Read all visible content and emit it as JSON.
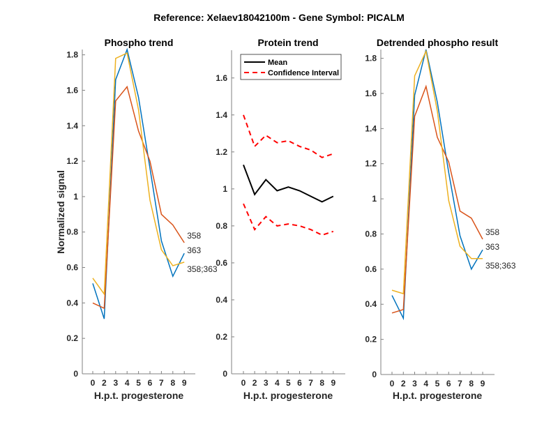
{
  "figure": {
    "title": "Reference:  Xelaev18042100m - Gene Symbol:  PICALM"
  },
  "chart_data": [
    {
      "type": "line",
      "title": "Phospho trend",
      "xlabel": "H.p.t. progesterone",
      "ylabel": "Normalized signal",
      "categories": [
        "0",
        "2",
        "3",
        "4",
        "5",
        "6",
        "7",
        "8",
        "9"
      ],
      "ylim": [
        0,
        1.83
      ],
      "yticks": [
        0,
        0.2,
        0.4,
        0.6,
        0.8,
        1,
        1.2,
        1.4,
        1.6,
        1.8
      ],
      "ytick_labels": [
        "0",
        "0.2",
        "0.4",
        "0.6",
        "0.8",
        "1",
        "1.2",
        "1.4",
        "1.6",
        "1.8"
      ],
      "grid": false,
      "series": [
        {
          "name": "363",
          "color": "#0072BD",
          "values": [
            0.51,
            0.31,
            1.66,
            1.83,
            1.56,
            1.16,
            0.75,
            0.55,
            0.68
          ]
        },
        {
          "name": "358",
          "color": "#D95319",
          "values": [
            0.4,
            0.37,
            1.54,
            1.62,
            1.37,
            1.2,
            0.9,
            0.84,
            0.74
          ]
        },
        {
          "name": "358;363",
          "color": "#EDB120",
          "values": [
            0.54,
            0.45,
            1.78,
            1.81,
            1.49,
            0.98,
            0.7,
            0.61,
            0.63
          ]
        }
      ],
      "end_labels": [
        "363",
        "358",
        "358;363"
      ]
    },
    {
      "type": "line",
      "title": "Protein trend",
      "xlabel": "H.p.t. progesterone",
      "ylabel": "",
      "categories": [
        "0",
        "2",
        "3",
        "4",
        "5",
        "6",
        "7",
        "8",
        "9"
      ],
      "ylim": [
        0,
        1.75
      ],
      "yticks": [
        0,
        0.2,
        0.4,
        0.6,
        0.8,
        1,
        1.2,
        1.4,
        1.6
      ],
      "ytick_labels": [
        "0",
        "0.2",
        "0.4",
        "0.6",
        "0.8",
        "1",
        "1.2",
        "1.4",
        "1.6"
      ],
      "grid": false,
      "legend": {
        "placement": "top",
        "entries": [
          "Mean",
          "Confidence Interval"
        ]
      },
      "series": [
        {
          "name": "Mean",
          "color": "#000000",
          "style": "solid",
          "values": [
            1.13,
            0.97,
            1.05,
            0.99,
            1.01,
            0.99,
            0.96,
            0.93,
            0.96
          ]
        },
        {
          "name": "Confidence Interval",
          "color": "#FF0000",
          "style": "dashed",
          "values": [
            1.4,
            1.23,
            1.29,
            1.25,
            1.26,
            1.23,
            1.21,
            1.17,
            1.19
          ]
        },
        {
          "name": "Confidence Interval (lower)",
          "color": "#FF0000",
          "style": "dashed",
          "values": [
            0.92,
            0.78,
            0.85,
            0.8,
            0.81,
            0.8,
            0.78,
            0.75,
            0.77
          ]
        }
      ]
    },
    {
      "type": "line",
      "title": "Detrended phospho result",
      "xlabel": "H.p.t. progesterone",
      "ylabel": "",
      "categories": [
        "0",
        "2",
        "3",
        "4",
        "5",
        "6",
        "7",
        "8",
        "9"
      ],
      "ylim": [
        0,
        1.85
      ],
      "yticks": [
        0,
        0.2,
        0.4,
        0.6,
        0.8,
        1,
        1.2,
        1.4,
        1.6,
        1.8
      ],
      "ytick_labels": [
        "0",
        "0.2",
        "0.4",
        "0.6",
        "0.8",
        "1",
        "1.2",
        "1.4",
        "1.6",
        "1.8"
      ],
      "grid": false,
      "series": [
        {
          "name": "363",
          "color": "#0072BD",
          "values": [
            0.45,
            0.32,
            1.59,
            1.85,
            1.55,
            1.15,
            0.79,
            0.6,
            0.71
          ]
        },
        {
          "name": "358",
          "color": "#D95319",
          "values": [
            0.35,
            0.37,
            1.47,
            1.64,
            1.35,
            1.21,
            0.93,
            0.89,
            0.77
          ]
        },
        {
          "name": "358;363",
          "color": "#EDB120",
          "values": [
            0.48,
            0.46,
            1.7,
            1.84,
            1.5,
            0.99,
            0.73,
            0.66,
            0.66
          ]
        }
      ],
      "end_labels": [
        "363",
        "358",
        "358;363"
      ]
    }
  ]
}
